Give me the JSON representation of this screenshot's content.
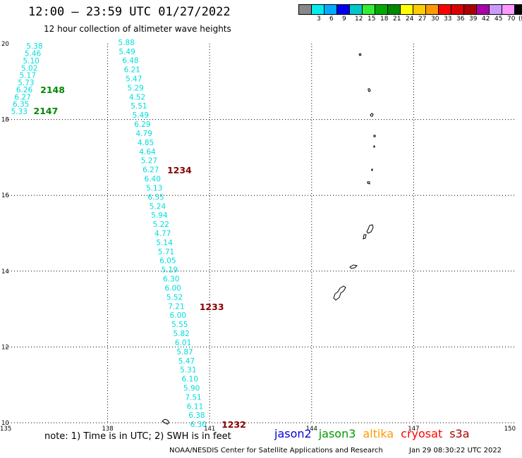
{
  "header": {
    "title": "12:00 – 23:59 UTC 01/27/2022",
    "subtitle": "12 hour collection of altimeter wave heights"
  },
  "legend": {
    "unit": "(ft)",
    "swatches": [
      {
        "color": "#888888",
        "label": ""
      },
      {
        "color": "#00eeee",
        "label": "3"
      },
      {
        "color": "#00aaff",
        "label": "6"
      },
      {
        "color": "#0000ee",
        "label": "9"
      },
      {
        "color": "#00c8c8",
        "label": "12"
      },
      {
        "color": "#33ee33",
        "label": "15"
      },
      {
        "color": "#00aa00",
        "label": "18"
      },
      {
        "color": "#008800",
        "label": "21"
      },
      {
        "color": "#ffff00",
        "label": "24"
      },
      {
        "color": "#ffcc00",
        "label": "27"
      },
      {
        "color": "#ff9900",
        "label": "30"
      },
      {
        "color": "#ff0000",
        "label": "33"
      },
      {
        "color": "#dd0000",
        "label": "36"
      },
      {
        "color": "#aa0000",
        "label": "39"
      },
      {
        "color": "#aa00aa",
        "label": "42"
      },
      {
        "color": "#cc99ff",
        "label": "45"
      },
      {
        "color": "#ff99ff",
        "label": "70"
      },
      {
        "color": "#000000",
        "label": ""
      }
    ]
  },
  "map": {
    "lon_ticks": [
      "135",
      "138",
      "141",
      "144",
      "147",
      "150"
    ],
    "lat_ticks": [
      "20",
      "18",
      "16",
      "14",
      "12",
      "10"
    ]
  },
  "tracks": [
    {
      "color": "#00dddd",
      "points": [
        {
          "lon": 135.85,
          "lat": 19.94,
          "v": "5.38"
        },
        {
          "lon": 135.8,
          "lat": 19.75,
          "v": "5.46"
        },
        {
          "lon": 135.75,
          "lat": 19.55,
          "v": "5.10"
        },
        {
          "lon": 135.7,
          "lat": 19.36,
          "v": "5.02"
        },
        {
          "lon": 135.65,
          "lat": 19.17,
          "v": "5.17"
        },
        {
          "lon": 135.6,
          "lat": 18.98,
          "v": "5.73"
        },
        {
          "lon": 135.55,
          "lat": 18.79,
          "v": "6.26"
        },
        {
          "lon": 135.5,
          "lat": 18.6,
          "v": "6.27"
        },
        {
          "lon": 135.45,
          "lat": 18.41,
          "v": "6.35"
        },
        {
          "lon": 135.4,
          "lat": 18.22,
          "v": "5.33"
        }
      ]
    },
    {
      "color": "#00dddd",
      "points": [
        {
          "lon": 138.55,
          "lat": 20.04,
          "v": "5.88"
        },
        {
          "lon": 138.57,
          "lat": 19.8,
          "v": "5.49"
        },
        {
          "lon": 138.67,
          "lat": 19.56,
          "v": "6.48"
        },
        {
          "lon": 138.72,
          "lat": 19.32,
          "v": "6.21"
        },
        {
          "lon": 138.77,
          "lat": 19.08,
          "v": "5.47"
        },
        {
          "lon": 138.82,
          "lat": 18.84,
          "v": "5.29"
        },
        {
          "lon": 138.87,
          "lat": 18.6,
          "v": "4.52"
        },
        {
          "lon": 138.92,
          "lat": 18.36,
          "v": "5.51"
        },
        {
          "lon": 138.97,
          "lat": 18.12,
          "v": "5.49"
        },
        {
          "lon": 139.02,
          "lat": 17.88,
          "v": "6.29"
        },
        {
          "lon": 139.07,
          "lat": 17.64,
          "v": "4.79"
        },
        {
          "lon": 139.12,
          "lat": 17.4,
          "v": "4.85"
        },
        {
          "lon": 139.17,
          "lat": 17.16,
          "v": "4.64"
        },
        {
          "lon": 139.22,
          "lat": 16.92,
          "v": "5.27"
        },
        {
          "lon": 139.27,
          "lat": 16.68,
          "v": "6.27"
        },
        {
          "lon": 139.32,
          "lat": 16.44,
          "v": "6.40"
        },
        {
          "lon": 139.37,
          "lat": 16.2,
          "v": "5.13"
        },
        {
          "lon": 139.42,
          "lat": 15.96,
          "v": "6.55"
        },
        {
          "lon": 139.47,
          "lat": 15.72,
          "v": "5.24"
        },
        {
          "lon": 139.52,
          "lat": 15.48,
          "v": "5.94"
        },
        {
          "lon": 139.57,
          "lat": 15.24,
          "v": "5.22"
        },
        {
          "lon": 139.62,
          "lat": 15.0,
          "v": "4.77"
        },
        {
          "lon": 139.67,
          "lat": 14.76,
          "v": "5.14"
        },
        {
          "lon": 139.72,
          "lat": 14.52,
          "v": "5.71"
        },
        {
          "lon": 139.77,
          "lat": 14.28,
          "v": "6.05"
        },
        {
          "lon": 139.82,
          "lat": 14.04,
          "v": "5.19"
        },
        {
          "lon": 139.87,
          "lat": 13.8,
          "v": "6.30"
        },
        {
          "lon": 139.92,
          "lat": 13.56,
          "v": "6.00"
        },
        {
          "lon": 139.97,
          "lat": 13.32,
          "v": "5.52"
        },
        {
          "lon": 140.02,
          "lat": 13.08,
          "v": "7.21"
        },
        {
          "lon": 140.07,
          "lat": 12.84,
          "v": "6.00"
        },
        {
          "lon": 140.12,
          "lat": 12.6,
          "v": "5.55"
        },
        {
          "lon": 140.17,
          "lat": 12.36,
          "v": "5.82"
        },
        {
          "lon": 140.22,
          "lat": 12.12,
          "v": "6.01"
        },
        {
          "lon": 140.27,
          "lat": 11.88,
          "v": "5.87"
        },
        {
          "lon": 140.32,
          "lat": 11.64,
          "v": "5.47"
        },
        {
          "lon": 140.37,
          "lat": 11.4,
          "v": "5.31"
        },
        {
          "lon": 140.42,
          "lat": 11.16,
          "v": "6.10"
        },
        {
          "lon": 140.47,
          "lat": 10.92,
          "v": "5.90"
        },
        {
          "lon": 140.52,
          "lat": 10.68,
          "v": "7.51"
        },
        {
          "lon": 140.57,
          "lat": 10.44,
          "v": "6.11"
        },
        {
          "lon": 140.62,
          "lat": 10.2,
          "v": "6.38"
        },
        {
          "lon": 140.67,
          "lat": 9.96,
          "v": "6.30"
        }
      ]
    }
  ],
  "pass_labels": [
    {
      "lon": 136.02,
      "lat": 18.79,
      "text": "2148",
      "color": "#008800"
    },
    {
      "lon": 135.82,
      "lat": 18.23,
      "text": "2147",
      "color": "#008800"
    },
    {
      "lon": 139.75,
      "lat": 16.67,
      "text": "1234",
      "color": "#880000"
    },
    {
      "lon": 140.7,
      "lat": 13.07,
      "text": "1233",
      "color": "#880000"
    },
    {
      "lon": 141.35,
      "lat": 9.96,
      "text": "1232",
      "color": "#880000"
    }
  ],
  "footer": {
    "note": "note: 1) Time is in UTC; 2) SWH is in feet",
    "satellites": [
      {
        "name": "jason2",
        "color": "#0000dd"
      },
      {
        "name": "jason3",
        "color": "#009900"
      },
      {
        "name": "altika",
        "color": "#ff9900"
      },
      {
        "name": "cryosat",
        "color": "#ff0000"
      },
      {
        "name": "s3a",
        "color": "#aa0000"
      }
    ],
    "credit": "NOAA/NESDIS Center for Satellite Applications and Research",
    "timestamp": "Jan 29 08:30:22 UTC 2022"
  }
}
